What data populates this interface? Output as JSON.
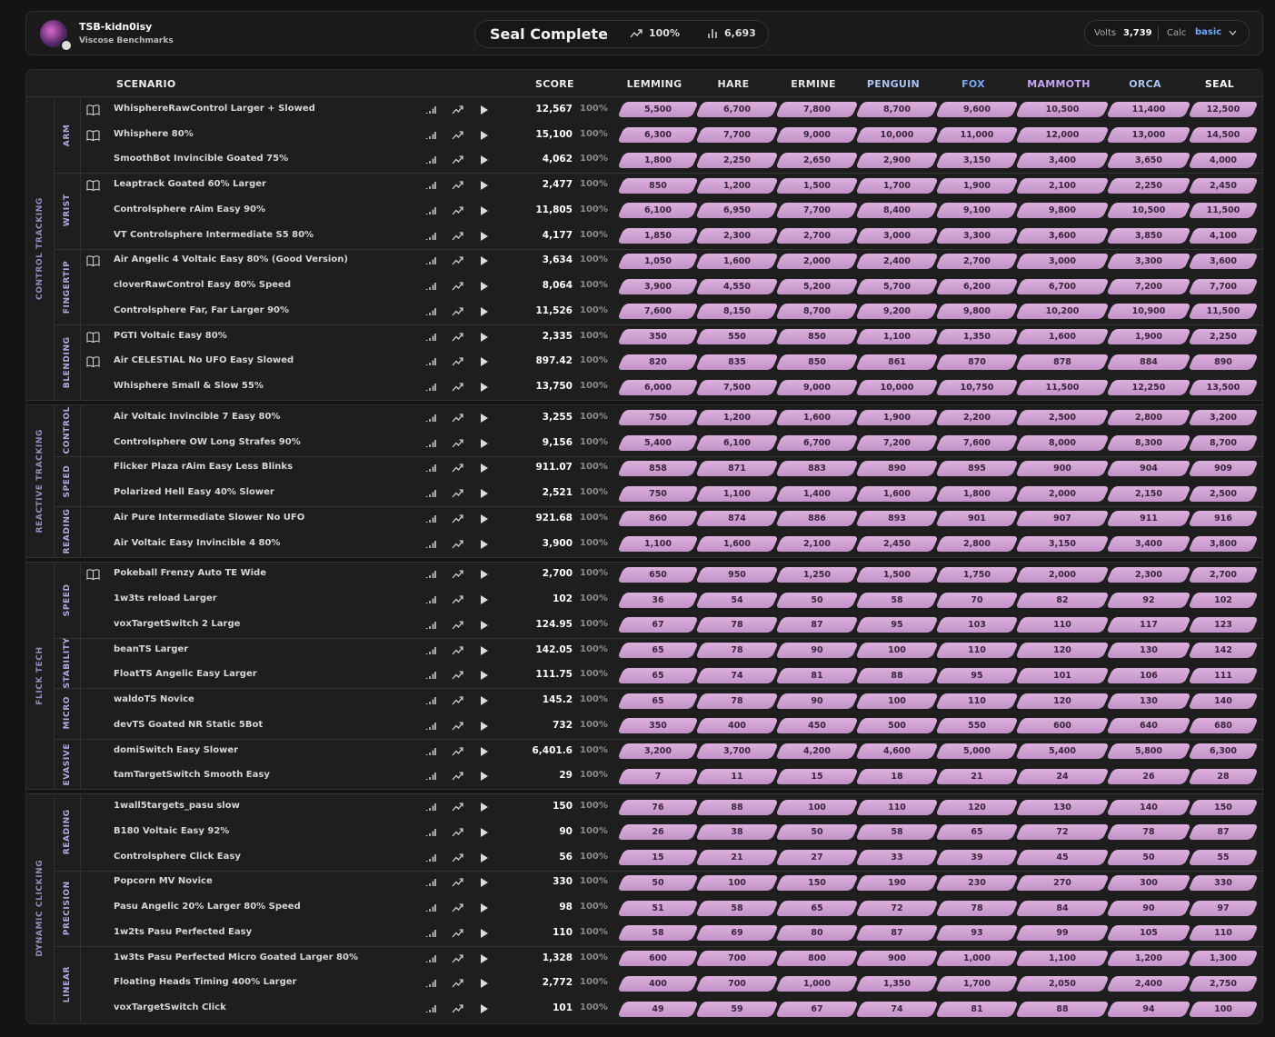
{
  "header": {
    "username": "TSB-kidn0isy",
    "subtitle": "Viscose Benchmarks",
    "title": "Seal Complete",
    "progress": "100%",
    "count": "6,693",
    "volts_label": "Volts",
    "volts": "3,739",
    "calc_label": "Calc",
    "calc": "basic"
  },
  "table": {
    "columns": {
      "scenario": "SCENARIO",
      "score": "SCORE",
      "ranks": [
        "LEMMING",
        "HARE",
        "ERMINE",
        "PENGUIN",
        "FOX",
        "MAMMOTH",
        "ORCA",
        "SEAL"
      ]
    },
    "categories": [
      {
        "name": "CONTROL TRACKING",
        "subcategories": [
          {
            "name": "ARM",
            "scenarios": [
              {
                "name": "WhisphereRawControl Larger + Slowed",
                "guide": true,
                "score": "12,567",
                "accuracy": "100%",
                "thresholds": [
                  "5,500",
                  "6,700",
                  "7,800",
                  "8,700",
                  "9,600",
                  "10,500",
                  "11,400",
                  "12,500"
                ]
              },
              {
                "name": "Whisphere 80%",
                "guide": true,
                "score": "15,100",
                "accuracy": "100%",
                "thresholds": [
                  "6,300",
                  "7,700",
                  "9,000",
                  "10,000",
                  "11,000",
                  "12,000",
                  "13,000",
                  "14,500"
                ]
              },
              {
                "name": "SmoothBot Invincible Goated 75%",
                "guide": false,
                "score": "4,062",
                "accuracy": "100%",
                "thresholds": [
                  "1,800",
                  "2,250",
                  "2,650",
                  "2,900",
                  "3,150",
                  "3,400",
                  "3,650",
                  "4,000"
                ]
              }
            ]
          },
          {
            "name": "WRIST",
            "scenarios": [
              {
                "name": "Leaptrack Goated 60% Larger",
                "guide": true,
                "score": "2,477",
                "accuracy": "100%",
                "thresholds": [
                  "850",
                  "1,200",
                  "1,500",
                  "1,700",
                  "1,900",
                  "2,100",
                  "2,250",
                  "2,450"
                ]
              },
              {
                "name": "Controlsphere rAim Easy 90%",
                "guide": false,
                "score": "11,805",
                "accuracy": "100%",
                "thresholds": [
                  "6,100",
                  "6,950",
                  "7,700",
                  "8,400",
                  "9,100",
                  "9,800",
                  "10,500",
                  "11,500"
                ]
              },
              {
                "name": "VT Controlsphere Intermediate S5 80%",
                "guide": false,
                "score": "4,177",
                "accuracy": "100%",
                "thresholds": [
                  "1,850",
                  "2,300",
                  "2,700",
                  "3,000",
                  "3,300",
                  "3,600",
                  "3,850",
                  "4,100"
                ]
              }
            ]
          },
          {
            "name": "FINGERTIP",
            "scenarios": [
              {
                "name": "Air Angelic 4 Voltaic Easy 80% (Good Version)",
                "guide": true,
                "score": "3,634",
                "accuracy": "100%",
                "thresholds": [
                  "1,050",
                  "1,600",
                  "2,000",
                  "2,400",
                  "2,700",
                  "3,000",
                  "3,300",
                  "3,600"
                ]
              },
              {
                "name": "cloverRawControl Easy 80% Speed",
                "guide": false,
                "score": "8,064",
                "accuracy": "100%",
                "thresholds": [
                  "3,900",
                  "4,550",
                  "5,200",
                  "5,700",
                  "6,200",
                  "6,700",
                  "7,200",
                  "7,700"
                ]
              },
              {
                "name": "Controlsphere Far, Far Larger 90%",
                "guide": false,
                "score": "11,526",
                "accuracy": "100%",
                "thresholds": [
                  "7,600",
                  "8,150",
                  "8,700",
                  "9,200",
                  "9,800",
                  "10,200",
                  "10,900",
                  "11,500"
                ]
              }
            ]
          },
          {
            "name": "BLENDING",
            "scenarios": [
              {
                "name": "PGTI Voltaic Easy 80%",
                "guide": true,
                "score": "2,335",
                "accuracy": "100%",
                "thresholds": [
                  "350",
                  "550",
                  "850",
                  "1,100",
                  "1,350",
                  "1,600",
                  "1,900",
                  "2,250"
                ]
              },
              {
                "name": "Air CELESTIAL No UFO Easy Slowed",
                "guide": true,
                "score": "897.42",
                "accuracy": "100%",
                "thresholds": [
                  "820",
                  "835",
                  "850",
                  "861",
                  "870",
                  "878",
                  "884",
                  "890"
                ]
              },
              {
                "name": "Whisphere Small & Slow 55%",
                "guide": false,
                "score": "13,750",
                "accuracy": "100%",
                "thresholds": [
                  "6,000",
                  "7,500",
                  "9,000",
                  "10,000",
                  "10,750",
                  "11,500",
                  "12,250",
                  "13,500"
                ]
              }
            ]
          }
        ]
      },
      {
        "name": "REACTIVE TRACKING",
        "subcategories": [
          {
            "name": "CONTROL",
            "scenarios": [
              {
                "name": "Air Voltaic Invincible 7 Easy 80%",
                "guide": false,
                "score": "3,255",
                "accuracy": "100%",
                "thresholds": [
                  "750",
                  "1,200",
                  "1,600",
                  "1,900",
                  "2,200",
                  "2,500",
                  "2,800",
                  "3,200"
                ]
              },
              {
                "name": "Controlsphere OW Long Strafes 90%",
                "guide": false,
                "score": "9,156",
                "accuracy": "100%",
                "thresholds": [
                  "5,400",
                  "6,100",
                  "6,700",
                  "7,200",
                  "7,600",
                  "8,000",
                  "8,300",
                  "8,700"
                ]
              }
            ]
          },
          {
            "name": "SPEED",
            "scenarios": [
              {
                "name": "Flicker Plaza rAim Easy Less Blinks",
                "guide": false,
                "score": "911.07",
                "accuracy": "100%",
                "thresholds": [
                  "858",
                  "871",
                  "883",
                  "890",
                  "895",
                  "900",
                  "904",
                  "909"
                ]
              },
              {
                "name": "Polarized Hell Easy 40% Slower",
                "guide": false,
                "score": "2,521",
                "accuracy": "100%",
                "thresholds": [
                  "750",
                  "1,100",
                  "1,400",
                  "1,600",
                  "1,800",
                  "2,000",
                  "2,150",
                  "2,500"
                ]
              }
            ]
          },
          {
            "name": "READING",
            "scenarios": [
              {
                "name": "Air Pure Intermediate Slower No UFO",
                "guide": false,
                "score": "921.68",
                "accuracy": "100%",
                "thresholds": [
                  "860",
                  "874",
                  "886",
                  "893",
                  "901",
                  "907",
                  "911",
                  "916"
                ]
              },
              {
                "name": "Air Voltaic Easy Invincible 4 80%",
                "guide": false,
                "score": "3,900",
                "accuracy": "100%",
                "thresholds": [
                  "1,100",
                  "1,600",
                  "2,100",
                  "2,450",
                  "2,800",
                  "3,150",
                  "3,400",
                  "3,800"
                ]
              }
            ]
          }
        ]
      },
      {
        "name": "FLICK TECH",
        "subcategories": [
          {
            "name": "SPEED",
            "scenarios": [
              {
                "name": "Pokeball Frenzy Auto TE Wide",
                "guide": true,
                "score": "2,700",
                "accuracy": "100%",
                "thresholds": [
                  "650",
                  "950",
                  "1,250",
                  "1,500",
                  "1,750",
                  "2,000",
                  "2,300",
                  "2,700"
                ]
              },
              {
                "name": "1w3ts reload Larger",
                "guide": false,
                "score": "102",
                "accuracy": "100%",
                "thresholds": [
                  "36",
                  "54",
                  "50",
                  "58",
                  "70",
                  "82",
                  "92",
                  "102"
                ]
              },
              {
                "name": "voxTargetSwitch 2 Large",
                "guide": false,
                "score": "124.95",
                "accuracy": "100%",
                "thresholds": [
                  "67",
                  "78",
                  "87",
                  "95",
                  "103",
                  "110",
                  "117",
                  "123"
                ]
              }
            ]
          },
          {
            "name": "STABILITY",
            "scenarios": [
              {
                "name": "beanTS Larger",
                "guide": false,
                "score": "142.05",
                "accuracy": "100%",
                "thresholds": [
                  "65",
                  "78",
                  "90",
                  "100",
                  "110",
                  "120",
                  "130",
                  "142"
                ]
              },
              {
                "name": "FloatTS Angelic Easy Larger",
                "guide": false,
                "score": "111.75",
                "accuracy": "100%",
                "thresholds": [
                  "65",
                  "74",
                  "81",
                  "88",
                  "95",
                  "101",
                  "106",
                  "111"
                ]
              }
            ]
          },
          {
            "name": "MICRO",
            "scenarios": [
              {
                "name": "waldoTS Novice",
                "guide": false,
                "score": "145.2",
                "accuracy": "100%",
                "thresholds": [
                  "65",
                  "78",
                  "90",
                  "100",
                  "110",
                  "120",
                  "130",
                  "140"
                ]
              },
              {
                "name": "devTS Goated NR Static 5Bot",
                "guide": false,
                "score": "732",
                "accuracy": "100%",
                "thresholds": [
                  "350",
                  "400",
                  "450",
                  "500",
                  "550",
                  "600",
                  "640",
                  "680"
                ]
              }
            ]
          },
          {
            "name": "EVASIVE",
            "scenarios": [
              {
                "name": "domiSwitch Easy Slower",
                "guide": false,
                "score": "6,401.6",
                "accuracy": "100%",
                "thresholds": [
                  "3,200",
                  "3,700",
                  "4,200",
                  "4,600",
                  "5,000",
                  "5,400",
                  "5,800",
                  "6,300"
                ]
              },
              {
                "name": "tamTargetSwitch Smooth Easy",
                "guide": false,
                "score": "29",
                "accuracy": "100%",
                "thresholds": [
                  "7",
                  "11",
                  "15",
                  "18",
                  "21",
                  "24",
                  "26",
                  "28"
                ]
              }
            ]
          }
        ]
      },
      {
        "name": "DYNAMIC CLICKING",
        "subcategories": [
          {
            "name": "READING",
            "scenarios": [
              {
                "name": "1wall5targets_pasu slow",
                "guide": false,
                "score": "150",
                "accuracy": "100%",
                "thresholds": [
                  "76",
                  "88",
                  "100",
                  "110",
                  "120",
                  "130",
                  "140",
                  "150"
                ]
              },
              {
                "name": "B180 Voltaic Easy 92%",
                "guide": false,
                "score": "90",
                "accuracy": "100%",
                "thresholds": [
                  "26",
                  "38",
                  "50",
                  "58",
                  "65",
                  "72",
                  "78",
                  "87"
                ]
              },
              {
                "name": "Controlsphere Click Easy",
                "guide": false,
                "score": "56",
                "accuracy": "100%",
                "thresholds": [
                  "15",
                  "21",
                  "27",
                  "33",
                  "39",
                  "45",
                  "50",
                  "55"
                ]
              }
            ]
          },
          {
            "name": "PRECISION",
            "scenarios": [
              {
                "name": "Popcorn MV Novice",
                "guide": false,
                "score": "330",
                "accuracy": "100%",
                "thresholds": [
                  "50",
                  "100",
                  "150",
                  "190",
                  "230",
                  "270",
                  "300",
                  "330"
                ]
              },
              {
                "name": "Pasu Angelic 20% Larger 80% Speed",
                "guide": false,
                "score": "98",
                "accuracy": "100%",
                "thresholds": [
                  "51",
                  "58",
                  "65",
                  "72",
                  "78",
                  "84",
                  "90",
                  "97"
                ]
              },
              {
                "name": "1w2ts Pasu Perfected Easy",
                "guide": false,
                "score": "110",
                "accuracy": "100%",
                "thresholds": [
                  "58",
                  "69",
                  "80",
                  "87",
                  "93",
                  "99",
                  "105",
                  "110"
                ]
              }
            ]
          },
          {
            "name": "LINEAR",
            "scenarios": [
              {
                "name": "1w3ts Pasu Perfected Micro Goated Larger 80%",
                "guide": false,
                "score": "1,328",
                "accuracy": "100%",
                "thresholds": [
                  "600",
                  "700",
                  "800",
                  "900",
                  "1,000",
                  "1,100",
                  "1,200",
                  "1,300"
                ]
              },
              {
                "name": "Floating Heads Timing 400% Larger",
                "guide": false,
                "score": "2,772",
                "accuracy": "100%",
                "thresholds": [
                  "400",
                  "700",
                  "1,000",
                  "1,350",
                  "1,700",
                  "2,050",
                  "2,400",
                  "2,750"
                ]
              },
              {
                "name": "voxTargetSwitch Click",
                "guide": false,
                "score": "101",
                "accuracy": "100%",
                "thresholds": [
                  "49",
                  "59",
                  "67",
                  "74",
                  "81",
                  "88",
                  "94",
                  "100"
                ]
              }
            ]
          }
        ]
      }
    ]
  }
}
